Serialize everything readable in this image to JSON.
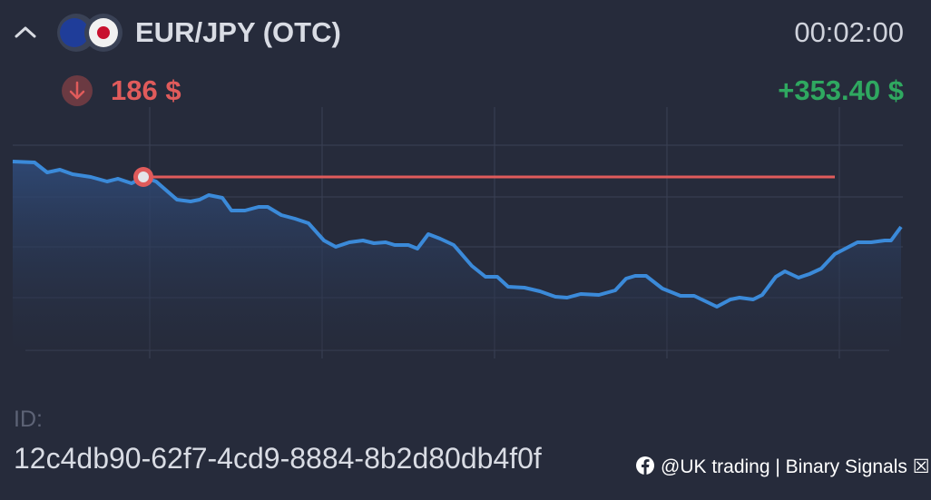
{
  "header": {
    "pair": "EUR/JPY (OTC)",
    "timer": "00:02:00"
  },
  "trade": {
    "amount": "186 $",
    "profit": "+353.40 $"
  },
  "footer": {
    "id_label": "ID:",
    "id": "12c4db90-62f7-4cd9-8884-8b2d80db4f0f",
    "watermark": "@UK trading | Binary Signals ☒"
  }
}
